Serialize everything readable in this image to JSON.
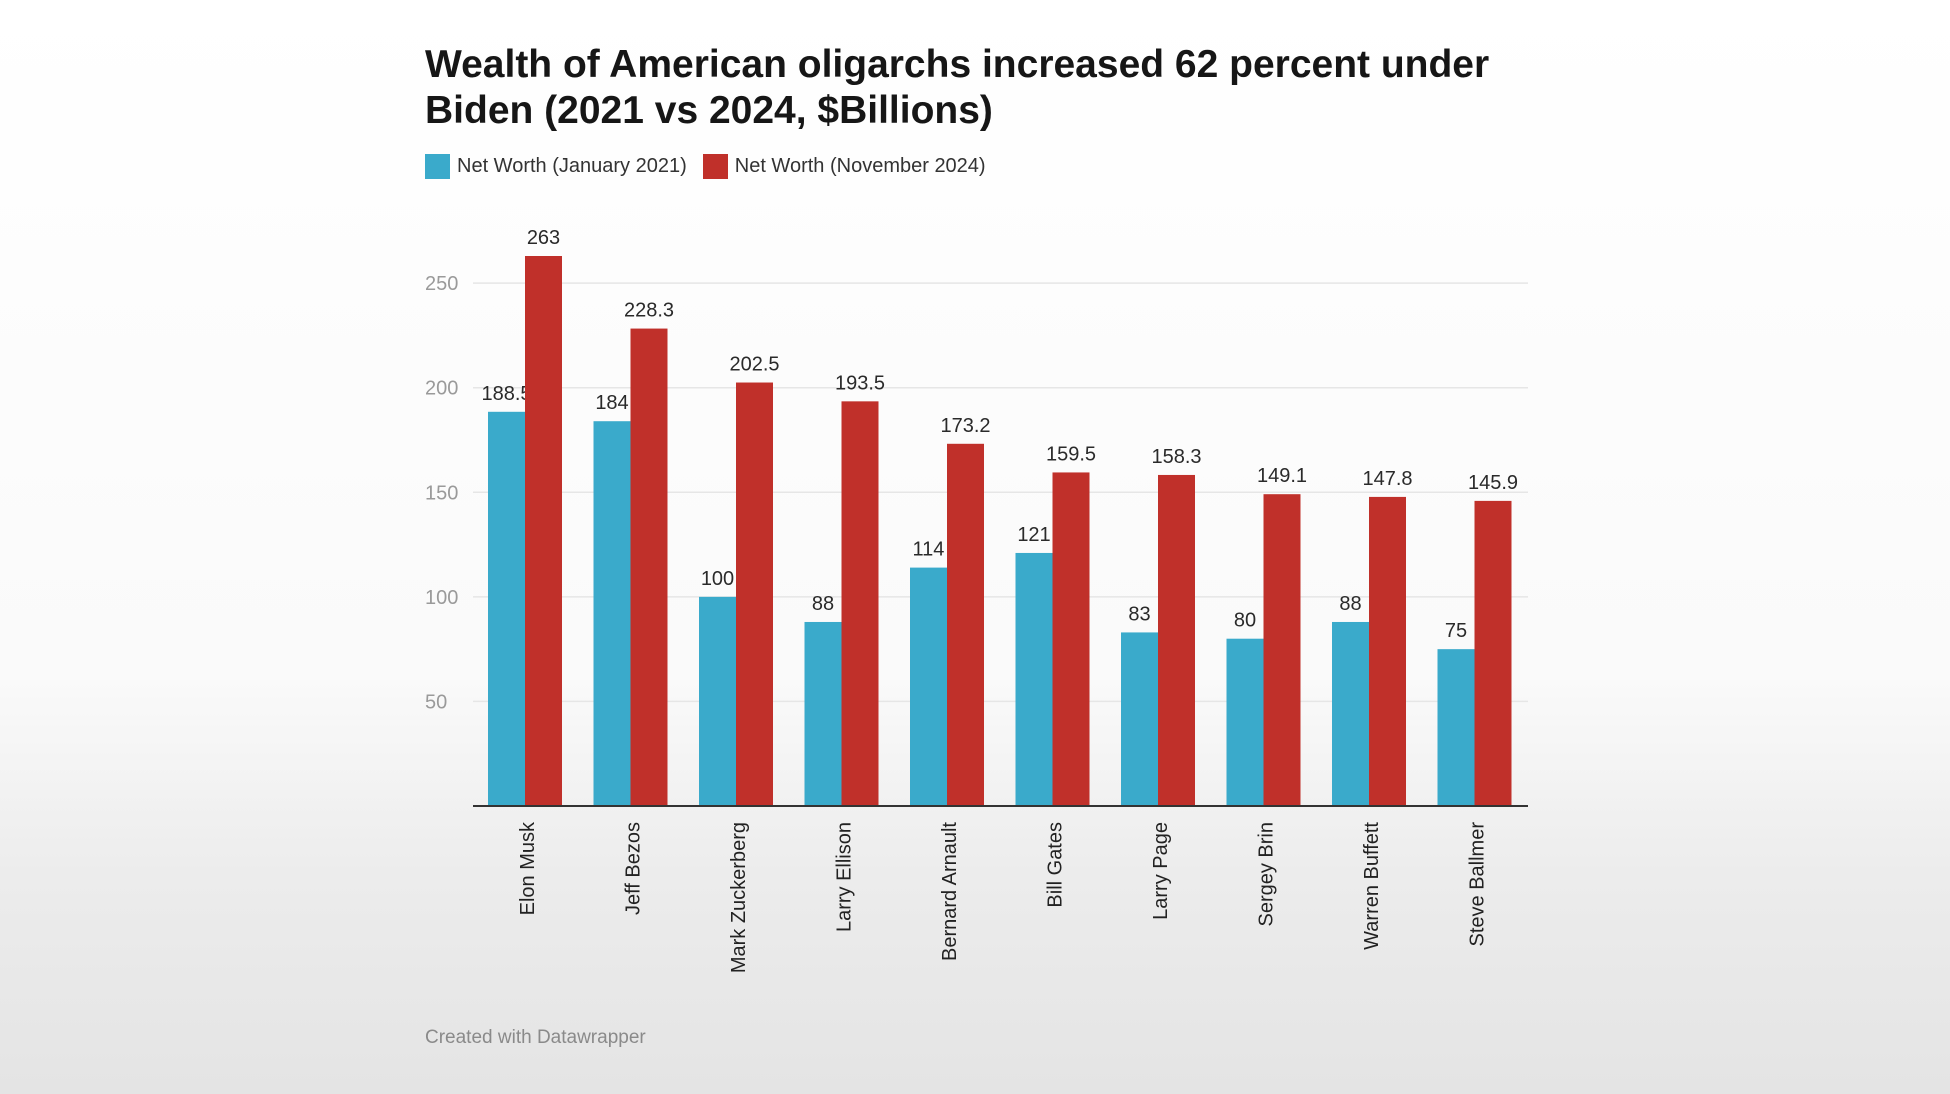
{
  "colors": {
    "series_2021": "#3aaacb",
    "series_2024": "#c0302a",
    "grid": "#e6e6e6",
    "axis": "#333333"
  },
  "footer": "Created with Datawrapper",
  "chart_data": {
    "type": "bar",
    "title": "Wealth of American oligarchs increased 62 percent under Biden (2021 vs 2024, $Billions)",
    "categories": [
      "Elon Musk",
      "Jeff Bezos",
      "Mark Zuckerberg",
      "Larry Ellison",
      "Bernard Arnault",
      "Bill Gates",
      "Larry Page",
      "Sergey Brin",
      "Warren Buffett",
      "Steve Ballmer"
    ],
    "series": [
      {
        "name": "Net Worth (January 2021)",
        "values": [
          188.5,
          184,
          100,
          88,
          114,
          121,
          83,
          80,
          88,
          75
        ]
      },
      {
        "name": "Net Worth (November 2024)",
        "values": [
          263,
          228.3,
          202.5,
          193.5,
          173.2,
          159.5,
          158.3,
          149.1,
          147.8,
          145.9
        ]
      }
    ],
    "value_labels": [
      [
        "188.5",
        "184",
        "100",
        "88",
        "114",
        "121",
        "83",
        "80",
        "88",
        "75"
      ],
      [
        "263",
        "228.3",
        "202.5",
        "193.5",
        "173.2",
        "159.5",
        "158.3",
        "149.1",
        "147.8",
        "145.9"
      ]
    ],
    "yticks": [
      50,
      100,
      150,
      200,
      250
    ],
    "ylim": [
      0,
      263
    ],
    "grid": true,
    "legend": "top-left"
  }
}
